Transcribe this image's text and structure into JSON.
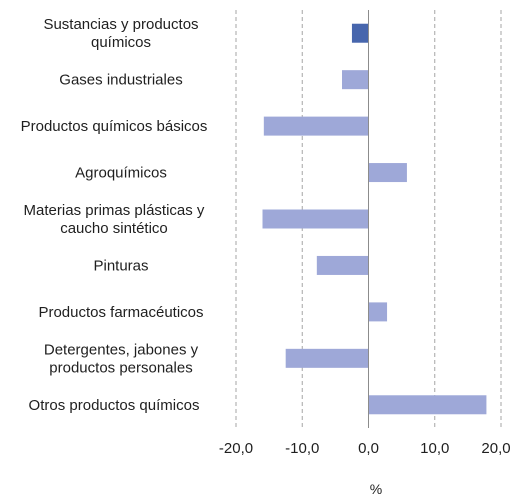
{
  "chart_data": {
    "type": "bar",
    "orientation": "horizontal",
    "categories": [
      "Sustancias y productos químicos",
      "Gases industriales",
      "Productos químicos básicos",
      "Agroquímicos",
      "Materias primas plásticas y caucho sintético",
      "Pinturas",
      "Productos farmacéuticos",
      "Detergentes, jabones y productos personales",
      "Otros productos químicos"
    ],
    "category_lines": [
      [
        "Sustancias y productos",
        "químicos"
      ],
      [
        "Gases industriales"
      ],
      [
        "Productos químicos básicos"
      ],
      [
        "Agroquímicos"
      ],
      [
        "Materias primas plásticas y",
        "caucho sintético"
      ],
      [
        "Pinturas"
      ],
      [
        "Productos farmacéuticos"
      ],
      [
        "Detergentes, jabones y",
        "productos personales"
      ],
      [
        "Otros productos químicos"
      ]
    ],
    "values": [
      -2.5,
      -4.0,
      -15.8,
      5.8,
      -16.0,
      -7.8,
      2.8,
      -12.5,
      17.8
    ],
    "highlight_index": 0,
    "colors": {
      "highlight": "#4766ad",
      "bar": "#9ea8d8",
      "grid": "#a6a6a6",
      "axis": "#8c8c8c"
    },
    "xlim": [
      -20,
      20
    ],
    "xticks": [
      -20,
      -10,
      0,
      10,
      20
    ],
    "xtick_labels": [
      "-20,0",
      "-10,0",
      "0,0",
      "10,0",
      "20,0"
    ],
    "xlabel": "%",
    "grid": "vertical dashed",
    "legend": "none"
  }
}
